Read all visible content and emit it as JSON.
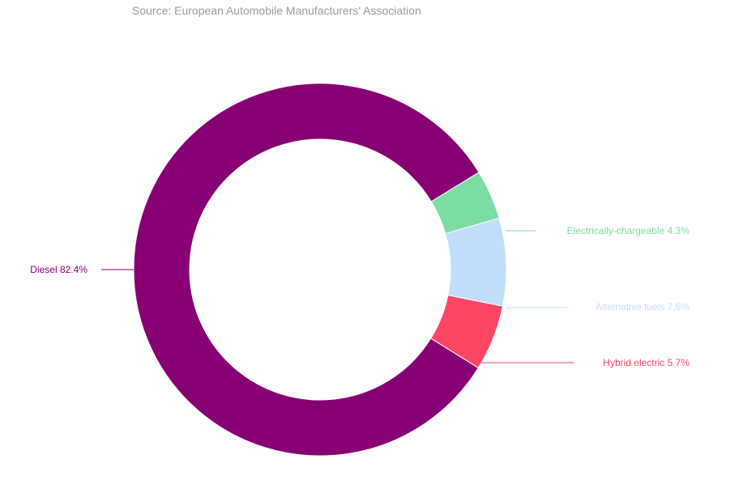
{
  "source": "Source: European Automobile Manufacturers' Association",
  "chart_data": {
    "type": "pie",
    "variant": "donut",
    "title": "",
    "legend": "none",
    "slices": [
      {
        "name": "Diesel",
        "value": 82.4,
        "label": "Diesel 82.4%",
        "color": "#870073"
      },
      {
        "name": "Electrically-chargeable",
        "value": 4.3,
        "label": "Electrically-chargeable 4.3%",
        "color": "#7bdda2"
      },
      {
        "name": "Alternative fuels",
        "value": 7.6,
        "label": "Alternative fuels 7.6%",
        "color": "#c0defb"
      },
      {
        "name": "Hybrid electric",
        "value": 5.7,
        "label": "Hybrid electric 5.7%",
        "color": "#fe4564"
      }
    ]
  }
}
